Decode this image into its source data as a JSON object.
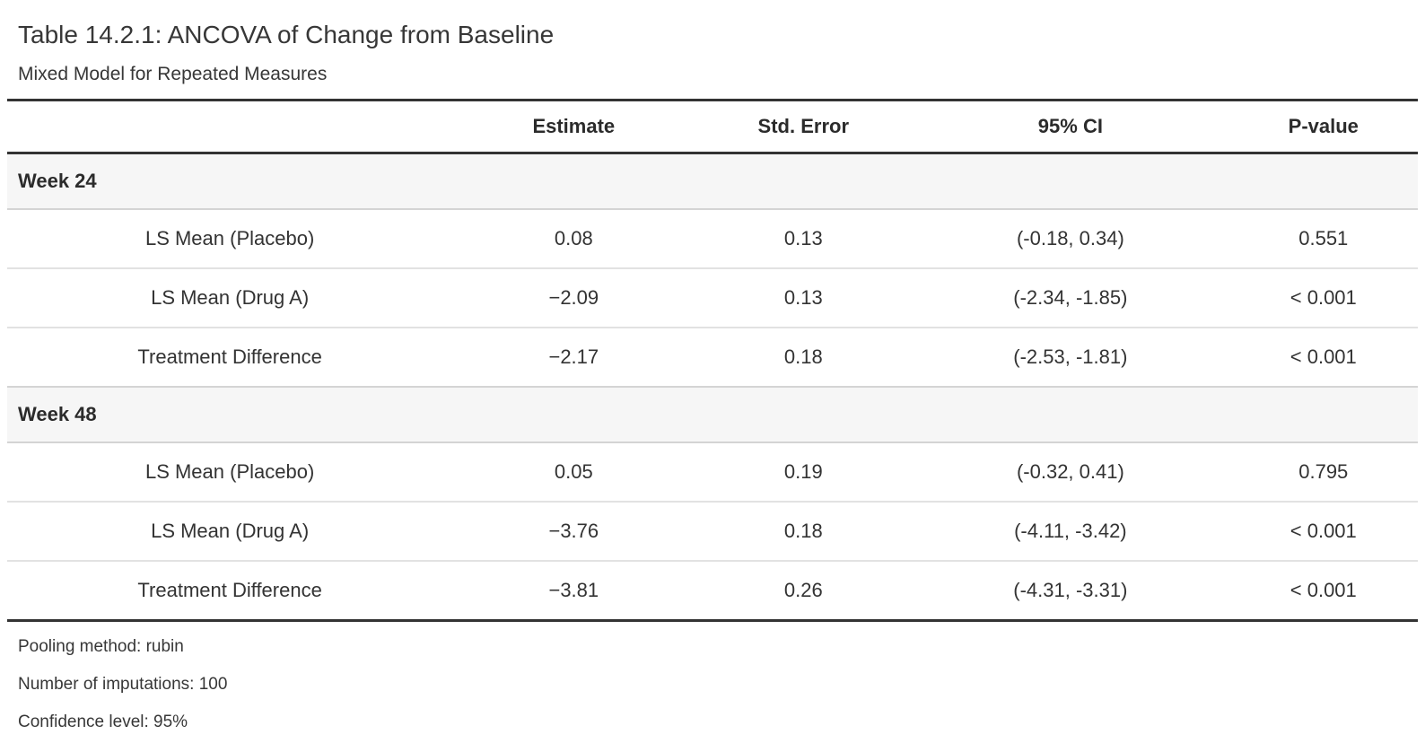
{
  "heading": {
    "title": "Table 14.2.1: ANCOVA of Change from Baseline",
    "subtitle": "Mixed Model for Repeated Measures"
  },
  "table": {
    "columns": [
      "",
      "Estimate",
      "Std. Error",
      "95% CI",
      "P-value"
    ],
    "groups": [
      {
        "label": "Week 24",
        "rows": [
          {
            "label": "LS Mean (Placebo)",
            "estimate": "0.08",
            "std_error": "0.13",
            "ci": "(-0.18, 0.34)",
            "p_value": "0.551"
          },
          {
            "label": "LS Mean (Drug A)",
            "estimate": "−2.09",
            "std_error": "0.13",
            "ci": "(-2.34, -1.85)",
            "p_value": "< 0.001"
          },
          {
            "label": "Treatment Difference",
            "estimate": "−2.17",
            "std_error": "0.18",
            "ci": "(-2.53, -1.81)",
            "p_value": "< 0.001"
          }
        ]
      },
      {
        "label": "Week 48",
        "rows": [
          {
            "label": "LS Mean (Placebo)",
            "estimate": "0.05",
            "std_error": "0.19",
            "ci": "(-0.32, 0.41)",
            "p_value": "0.795"
          },
          {
            "label": "LS Mean (Drug A)",
            "estimate": "−3.76",
            "std_error": "0.18",
            "ci": "(-4.11, -3.42)",
            "p_value": "< 0.001"
          },
          {
            "label": "Treatment Difference",
            "estimate": "−3.81",
            "std_error": "0.26",
            "ci": "(-4.31, -3.31)",
            "p_value": "< 0.001"
          }
        ]
      }
    ],
    "footnotes": [
      "Pooling method: rubin",
      "Number of imputations: 100",
      "Confidence level: 95%"
    ]
  },
  "colors": {
    "text": "#333333",
    "heavy_border": "#333333",
    "group_band_background": "#f6f6f6",
    "group_band_border": "#d4d4d4",
    "row_separator": "#e2e2e2",
    "page_background": "#ffffff"
  }
}
